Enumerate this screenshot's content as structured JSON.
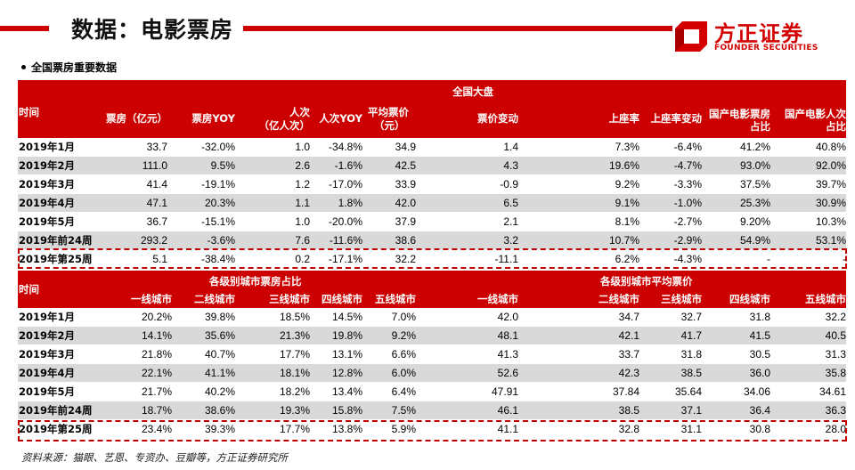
{
  "header": {
    "title": "数据：电影票房",
    "logo_cn": "方正证券",
    "logo_en": "FOUNDER SECURITIES",
    "brand_color": "#cc0000"
  },
  "section": {
    "heading": "全国票房重要数据"
  },
  "table1": {
    "group_label": "全国大盘",
    "time_label": "时间",
    "columns": [
      {
        "line1": "",
        "line2": "票房（亿元）"
      },
      {
        "line1": "",
        "line2": "票房YOY"
      },
      {
        "line1": "人次",
        "line2": "（亿人次）"
      },
      {
        "line1": "",
        "line2": "人次YOY"
      },
      {
        "line1": "平均票价",
        "line2": "（元）"
      },
      {
        "line1": "",
        "line2": "票价变动"
      },
      {
        "line1": "",
        "line2": "上座率"
      },
      {
        "line1": "",
        "line2": "上座率变动"
      },
      {
        "line1": "国产电影票房",
        "line2": "占比"
      },
      {
        "line1": "国产电影人次",
        "line2": "占比"
      }
    ],
    "rows": [
      {
        "label": "2019年1月",
        "values": [
          "33.7",
          "-32.0%",
          "1.0",
          "-34.8%",
          "34.9",
          "1.4",
          "7.3%",
          "-6.4%",
          "41.2%",
          "40.8%"
        ]
      },
      {
        "label": "2019年2月",
        "values": [
          "111.0",
          "9.5%",
          "2.6",
          "-1.6%",
          "42.5",
          "4.3",
          "19.6%",
          "-4.7%",
          "93.0%",
          "92.0%"
        ]
      },
      {
        "label": "2019年3月",
        "values": [
          "41.4",
          "-19.1%",
          "1.2",
          "-17.0%",
          "33.9",
          "-0.9",
          "9.2%",
          "-3.3%",
          "37.5%",
          "39.7%"
        ]
      },
      {
        "label": "2019年4月",
        "values": [
          "47.1",
          "20.3%",
          "1.1",
          "1.8%",
          "42.0",
          "6.5",
          "9.1%",
          "-1.0%",
          "25.3%",
          "30.9%"
        ]
      },
      {
        "label": "2019年5月",
        "values": [
          "36.7",
          "-15.1%",
          "1.0",
          "-20.0%",
          "37.9",
          "2.1",
          "8.1%",
          "-2.7%",
          "9.20%",
          "10.3%"
        ]
      },
      {
        "label": "2019年前24周",
        "values": [
          "293.2",
          "-3.6%",
          "7.6",
          "-11.6%",
          "38.6",
          "3.2",
          "10.7%",
          "-2.9%",
          "54.9%",
          "53.1%"
        ]
      },
      {
        "label": "2019年第25周",
        "values": [
          "5.1",
          "-38.4%",
          "0.2",
          "-17.1%",
          "32.2",
          "-11.1",
          "6.2%",
          "-4.3%",
          "-",
          "-"
        ]
      }
    ]
  },
  "table2": {
    "time_label": "时间",
    "group1_label": "各级别城市票房占比",
    "group2_label": "各级别城市平均票价",
    "columns": [
      "一线城市",
      "二线城市",
      "三线城市",
      "四线城市",
      "五线城市",
      "一线城市",
      "二线城市",
      "三线城市",
      "四线城市",
      "五线城市"
    ],
    "rows": [
      {
        "label": "2019年1月",
        "values": [
          "20.2%",
          "39.8%",
          "18.5%",
          "14.5%",
          "7.0%",
          "42.0",
          "34.7",
          "32.7",
          "31.8",
          "32.2"
        ]
      },
      {
        "label": "2019年2月",
        "values": [
          "14.1%",
          "35.6%",
          "21.3%",
          "19.8%",
          "9.2%",
          "48.1",
          "42.1",
          "41.7",
          "41.5",
          "40.5"
        ]
      },
      {
        "label": "2019年3月",
        "values": [
          "21.8%",
          "40.7%",
          "17.7%",
          "13.1%",
          "6.6%",
          "41.3",
          "33.7",
          "31.8",
          "30.5",
          "31.3"
        ]
      },
      {
        "label": "2019年4月",
        "values": [
          "22.1%",
          "41.1%",
          "18.1%",
          "12.8%",
          "6.0%",
          "52.6",
          "42.3",
          "38.5",
          "36.0",
          "35.8"
        ]
      },
      {
        "label": "2019年5月",
        "values": [
          "21.7%",
          "40.2%",
          "18.2%",
          "13.4%",
          "6.4%",
          "47.91",
          "37.84",
          "35.64",
          "34.06",
          "34.61"
        ]
      },
      {
        "label": "2019年前24周",
        "values": [
          "18.7%",
          "38.6%",
          "19.3%",
          "15.8%",
          "7.5%",
          "46.1",
          "38.5",
          "37.1",
          "36.4",
          "36.3"
        ]
      },
      {
        "label": "2019年第25周",
        "values": [
          "23.4%",
          "39.3%",
          "17.7%",
          "13.8%",
          "5.9%",
          "41.1",
          "32.8",
          "31.1",
          "30.8",
          "28.0"
        ]
      }
    ]
  },
  "footer": {
    "source": "资料来源：猫眼、艺恩、专资办、豆瓣等，方正证券研究所"
  }
}
